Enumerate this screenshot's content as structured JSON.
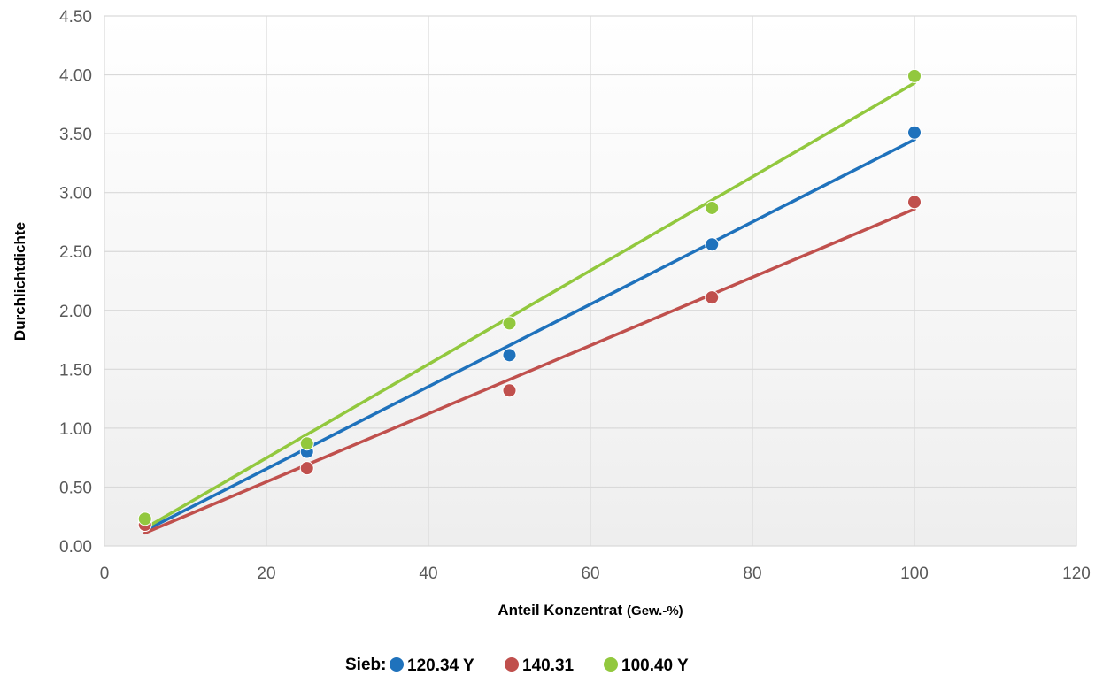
{
  "chart_data": {
    "type": "scatter",
    "title": "",
    "xlabel": "Anteil Konzentrat",
    "xlabel_unit": "(Gew.-%)",
    "ylabel": "Durchlichtdichte",
    "xlim": [
      0,
      120
    ],
    "ylim": [
      0,
      4.5
    ],
    "x_ticks": [
      "0",
      "20",
      "40",
      "60",
      "80",
      "100",
      "120"
    ],
    "y_ticks": [
      "0.00",
      "0.50",
      "1.00",
      "1.50",
      "2.00",
      "2.50",
      "3.00",
      "3.50",
      "4.00",
      "4.50"
    ],
    "grid": true,
    "legend_position": "bottom",
    "legend_title": "Sieb:",
    "trendlines": "linear",
    "series": [
      {
        "name": "120.34 Y",
        "color": "#1f72bc",
        "x": [
          5,
          25,
          50,
          75,
          100
        ],
        "y": [
          0.2,
          0.8,
          1.62,
          2.56,
          3.51
        ],
        "trend": [
          [
            5,
            0.13
          ],
          [
            100,
            3.45
          ]
        ]
      },
      {
        "name": "140.31",
        "color": "#c0504d",
        "x": [
          5,
          25,
          50,
          75,
          100
        ],
        "y": [
          0.18,
          0.66,
          1.32,
          2.11,
          2.92
        ],
        "trend": [
          [
            5,
            0.11
          ],
          [
            100,
            2.86
          ]
        ]
      },
      {
        "name": "100.40 Y",
        "color": "#92c83e",
        "x": [
          5,
          25,
          50,
          75,
          100
        ],
        "y": [
          0.23,
          0.87,
          1.89,
          2.87,
          3.99
        ],
        "trend": [
          [
            5,
            0.15
          ],
          [
            100,
            3.93
          ]
        ]
      }
    ]
  }
}
